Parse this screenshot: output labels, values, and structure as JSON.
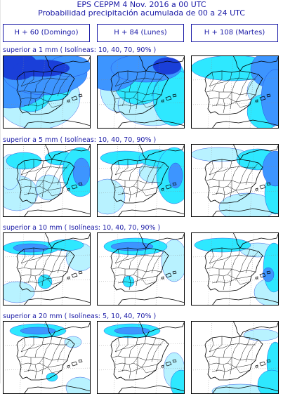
{
  "header": {
    "line1": "EPS  CEPPM  4 Nov. 2016  a  00 UTC",
    "line2": "Probabilidad precipitación acumulada de 00 a 24 UTC"
  },
  "columns": [
    {
      "label": "H + 60   (Domingo)"
    },
    {
      "label": "H + 84   (Lunes)"
    },
    {
      "label": "H + 108   (Martes)"
    }
  ],
  "rows": [
    {
      "label": "superior a 1 mm    ( Isolíneas: 10, 40, 70, 90% )"
    },
    {
      "label": "superior a 5 mm    ( Isolíneas: 10, 40, 70, 90% )"
    },
    {
      "label": "superior a 10 mm   ( Isolíneas: 10, 40, 70, 90% )"
    },
    {
      "label": "superior a 20 mm   ( Isolíneas: 5, 10, 40, 70% )"
    }
  ],
  "legend_colors": {
    "level_1": "#b8f2ff",
    "level_2": "#2ee8ff",
    "level_3": "#3d95ff",
    "level_4": "#1a3fd9",
    "land": "#ffffff",
    "border": "#000000"
  }
}
